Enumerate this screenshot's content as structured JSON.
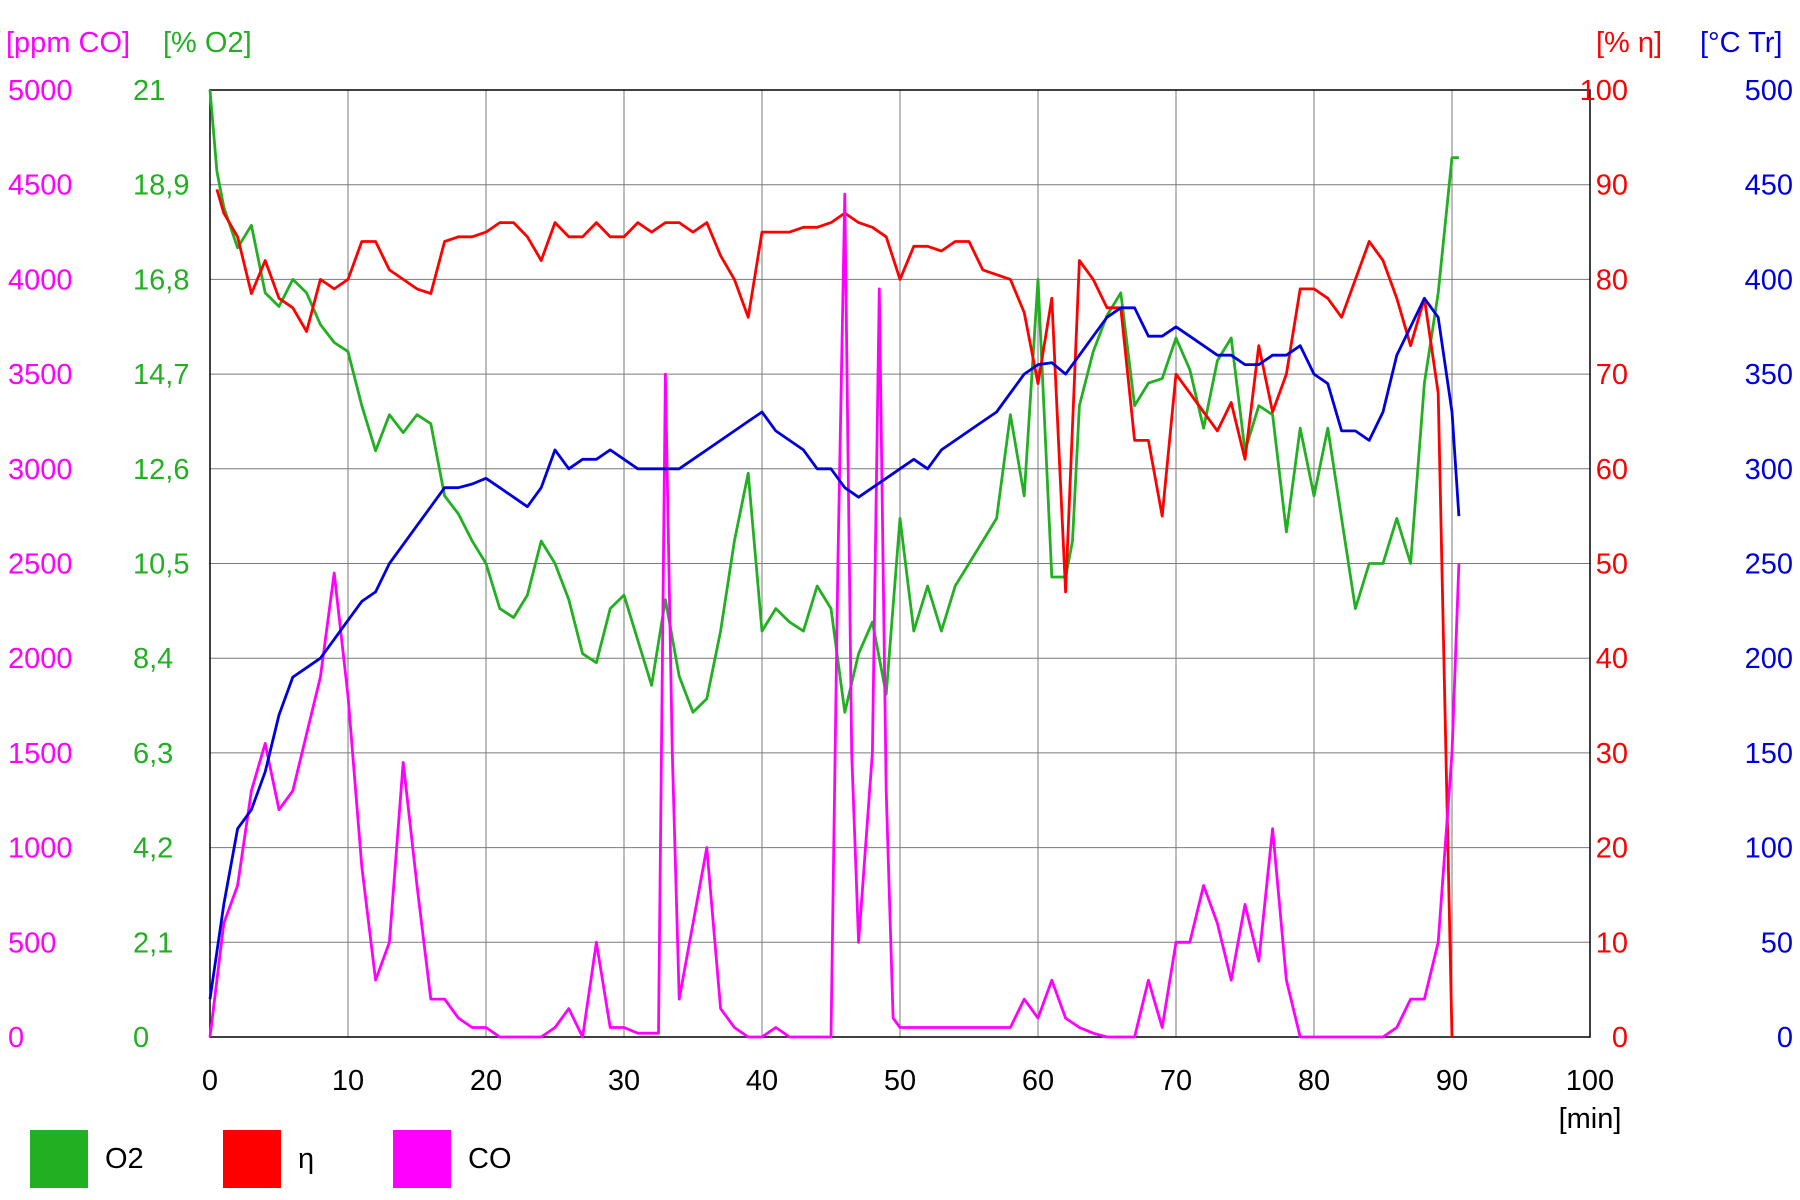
{
  "chart_data": {
    "type": "line",
    "xlabel": "[min]",
    "xlim": [
      0,
      100
    ],
    "x_ticks": [
      "0",
      "10",
      "20",
      "30",
      "40",
      "50",
      "60",
      "70",
      "80",
      "90",
      "100"
    ],
    "grid": true,
    "legend_placement": "bottom-left",
    "axes": {
      "co": {
        "label": "[ppm CO]",
        "side": "left",
        "color": "#ff00ff",
        "range": [
          0,
          5000
        ],
        "ticks": [
          "0",
          "500",
          "1000",
          "1500",
          "2000",
          "2500",
          "3000",
          "3500",
          "4000",
          "4500",
          "5000"
        ]
      },
      "o2": {
        "label": "[% O2]",
        "side": "left",
        "color": "#22b022",
        "range": [
          0,
          21
        ],
        "ticks": [
          "0",
          "2,1",
          "4,2",
          "6,3",
          "8,4",
          "10,5",
          "12,6",
          "14,7",
          "16,8",
          "18,9",
          "21"
        ]
      },
      "eta": {
        "label": "[% η]",
        "side": "right",
        "color": "#ff0000",
        "range": [
          0,
          100
        ],
        "ticks": [
          "0",
          "10",
          "20",
          "30",
          "40",
          "50",
          "60",
          "70",
          "80",
          "90",
          "100"
        ]
      },
      "tr": {
        "label": "[°C Tr]",
        "side": "right",
        "color": "#0000dd",
        "range": [
          0,
          500
        ],
        "ticks": [
          "0",
          "50",
          "100",
          "150",
          "200",
          "250",
          "300",
          "350",
          "400",
          "450",
          "500"
        ]
      }
    },
    "legend": [
      {
        "name": "O2",
        "color": "#22b022"
      },
      {
        "name": "η",
        "color": "#ff0000"
      },
      {
        "name": "CO",
        "color": "#ff00ff"
      }
    ],
    "series": [
      {
        "name": "O2",
        "axis": "o2",
        "color": "#22b022",
        "x": [
          0,
          0.5,
          1,
          2,
          3,
          4,
          5,
          6,
          7,
          8,
          9,
          10,
          11,
          12,
          13,
          14,
          15,
          16,
          17,
          18,
          19,
          20,
          21,
          22,
          23,
          24,
          25,
          26,
          27,
          28,
          29,
          30,
          31,
          32,
          33,
          34,
          35,
          36,
          37,
          38,
          39,
          40,
          41,
          42,
          43,
          44,
          45,
          46,
          47,
          48,
          49,
          50,
          51,
          52,
          53,
          54,
          55,
          56,
          57,
          58,
          59,
          60,
          61,
          62,
          62.5,
          63,
          64,
          65,
          66,
          67,
          68,
          69,
          70,
          71,
          72,
          73,
          74,
          75,
          76,
          77,
          78,
          79,
          80,
          81,
          82,
          83,
          84,
          85,
          86,
          87,
          88,
          89,
          90,
          90.5
        ],
        "y": [
          21,
          19.2,
          18.4,
          17.5,
          18,
          16.5,
          16.2,
          16.8,
          16.5,
          15.8,
          15.4,
          15.2,
          14,
          13,
          13.8,
          13.4,
          13.8,
          13.6,
          12,
          11.6,
          11,
          10.5,
          9.5,
          9.3,
          9.8,
          11,
          10.5,
          9.7,
          8.5,
          8.3,
          9.5,
          9.8,
          8.8,
          7.8,
          9.7,
          8,
          7.2,
          7.5,
          9,
          11,
          12.5,
          9,
          9.5,
          9.2,
          9,
          10,
          9.5,
          7.2,
          8.5,
          9.2,
          7.6,
          11.5,
          9,
          10,
          9,
          10,
          10.5,
          11,
          11.5,
          13.8,
          12,
          16.8,
          10.2,
          10.2,
          11,
          14,
          15.2,
          16,
          16.5,
          14,
          14.5,
          14.6,
          15.5,
          14.8,
          13.5,
          15,
          15.5,
          13,
          14,
          13.8,
          11.2,
          13.5,
          12,
          13.5,
          11.5,
          9.5,
          10.5,
          10.5,
          11.5,
          10.5,
          14.5,
          16.5,
          19.5,
          19.5
        ]
      },
      {
        "name": "η",
        "axis": "eta",
        "color": "#ff0000",
        "x": [
          0.5,
          1,
          2,
          3,
          4,
          5,
          6,
          7,
          8,
          9,
          10,
          11,
          12,
          13,
          14,
          15,
          16,
          17,
          18,
          19,
          20,
          21,
          22,
          23,
          24,
          25,
          26,
          27,
          28,
          29,
          30,
          31,
          32,
          33,
          34,
          35,
          36,
          37,
          38,
          39,
          40,
          41,
          42,
          43,
          44,
          45,
          46,
          47,
          48,
          49,
          50,
          51,
          52,
          53,
          54,
          55,
          56,
          57,
          58,
          59,
          60,
          61,
          62,
          63,
          64,
          65,
          66,
          67,
          68,
          69,
          70,
          71,
          72,
          73,
          74,
          75,
          76,
          77,
          78,
          79,
          80,
          81,
          82,
          83,
          84,
          85,
          86,
          87,
          88,
          89,
          90
        ],
        "y": [
          89.5,
          87,
          84.5,
          78.5,
          82,
          78,
          77,
          74.5,
          80,
          79,
          80,
          84,
          84,
          81,
          80,
          79,
          78.5,
          84,
          84.5,
          84.5,
          85,
          86,
          86,
          84.5,
          82,
          86,
          84.5,
          84.5,
          86,
          84.5,
          84.5,
          86,
          85,
          86,
          86,
          85,
          86,
          82.5,
          80,
          76,
          85,
          85,
          85,
          85.5,
          85.5,
          86,
          87,
          86,
          85.5,
          84.5,
          80,
          83.5,
          83.5,
          83,
          84,
          84,
          81,
          80.5,
          80,
          76.5,
          69,
          78,
          47,
          82,
          80,
          77,
          77,
          63,
          63,
          55,
          70,
          68,
          66,
          64,
          67,
          61,
          73,
          66,
          70,
          79,
          79,
          78,
          76,
          80,
          84,
          82,
          78,
          73,
          78,
          68,
          0
        ]
      },
      {
        "name": "CO",
        "axis": "co",
        "color": "#ff00ff",
        "x": [
          0,
          1,
          2,
          3,
          4,
          5,
          6,
          7,
          8,
          9,
          10,
          11,
          12,
          13,
          14,
          15,
          16,
          17,
          18,
          19,
          20,
          21,
          22,
          23,
          24,
          25,
          26,
          27,
          28,
          29,
          30,
          31,
          32,
          32.5,
          33,
          33.5,
          34,
          35,
          36,
          37,
          38,
          39,
          40,
          41,
          42,
          43,
          44,
          45,
          45.5,
          46,
          46.5,
          47,
          48,
          48.5,
          49,
          49.5,
          50,
          51,
          52,
          53,
          54,
          55,
          56,
          57,
          58,
          59,
          60,
          61,
          62,
          63,
          64,
          65,
          66,
          67,
          68,
          69,
          70,
          71,
          72,
          73,
          74,
          75,
          76,
          77,
          78,
          79,
          80,
          81,
          82,
          83,
          84,
          85,
          86,
          87,
          88,
          89,
          90,
          90.5
        ],
        "y": [
          0,
          600,
          800,
          1300,
          1550,
          1200,
          1300,
          1600,
          1900,
          2450,
          1800,
          900,
          300,
          500,
          1450,
          800,
          200,
          200,
          100,
          50,
          50,
          0,
          0,
          0,
          0,
          50,
          150,
          0,
          500,
          50,
          50,
          20,
          20,
          20,
          3500,
          1500,
          200,
          600,
          1000,
          150,
          50,
          0,
          0,
          50,
          0,
          0,
          0,
          0,
          2500,
          4450,
          1500,
          500,
          1500,
          3950,
          1300,
          100,
          50,
          50,
          50,
          50,
          50,
          50,
          50,
          50,
          50,
          200,
          100,
          300,
          100,
          50,
          20,
          0,
          0,
          0,
          300,
          50,
          500,
          500,
          800,
          600,
          300,
          700,
          400,
          1100,
          300,
          0,
          0,
          0,
          0,
          0,
          0,
          0,
          50,
          200,
          200,
          500,
          1500,
          2500
        ]
      },
      {
        "name": "Tr",
        "axis": "tr",
        "color": "#0000dd",
        "x": [
          0,
          1,
          2,
          3,
          4,
          5,
          6,
          7,
          8,
          9,
          10,
          11,
          12,
          13,
          14,
          15,
          16,
          17,
          18,
          19,
          20,
          21,
          22,
          23,
          24,
          25,
          26,
          27,
          28,
          29,
          30,
          31,
          32,
          33,
          34,
          35,
          36,
          37,
          38,
          39,
          40,
          41,
          42,
          43,
          44,
          45,
          46,
          47,
          48,
          49,
          50,
          51,
          52,
          53,
          54,
          55,
          56,
          57,
          58,
          59,
          60,
          61,
          62,
          63,
          64,
          65,
          66,
          67,
          68,
          69,
          70,
          71,
          72,
          73,
          74,
          75,
          76,
          77,
          78,
          79,
          80,
          81,
          82,
          83,
          84,
          85,
          86,
          87,
          88,
          89,
          90,
          90.5
        ],
        "y": [
          20,
          70,
          110,
          120,
          140,
          170,
          190,
          195,
          200,
          210,
          220,
          230,
          235,
          250,
          260,
          270,
          280,
          290,
          290,
          292,
          295,
          290,
          285,
          280,
          290,
          310,
          300,
          305,
          305,
          310,
          305,
          300,
          300,
          300,
          300,
          305,
          310,
          315,
          320,
          325,
          330,
          320,
          315,
          310,
          300,
          300,
          290,
          285,
          290,
          295,
          300,
          305,
          300,
          310,
          315,
          320,
          325,
          330,
          340,
          350,
          355,
          356,
          350,
          360,
          370,
          380,
          385,
          385,
          370,
          370,
          375,
          370,
          365,
          360,
          360,
          355,
          355,
          360,
          360,
          365,
          350,
          345,
          320,
          320,
          315,
          330,
          360,
          375,
          390,
          380,
          330,
          275
        ]
      }
    ]
  }
}
